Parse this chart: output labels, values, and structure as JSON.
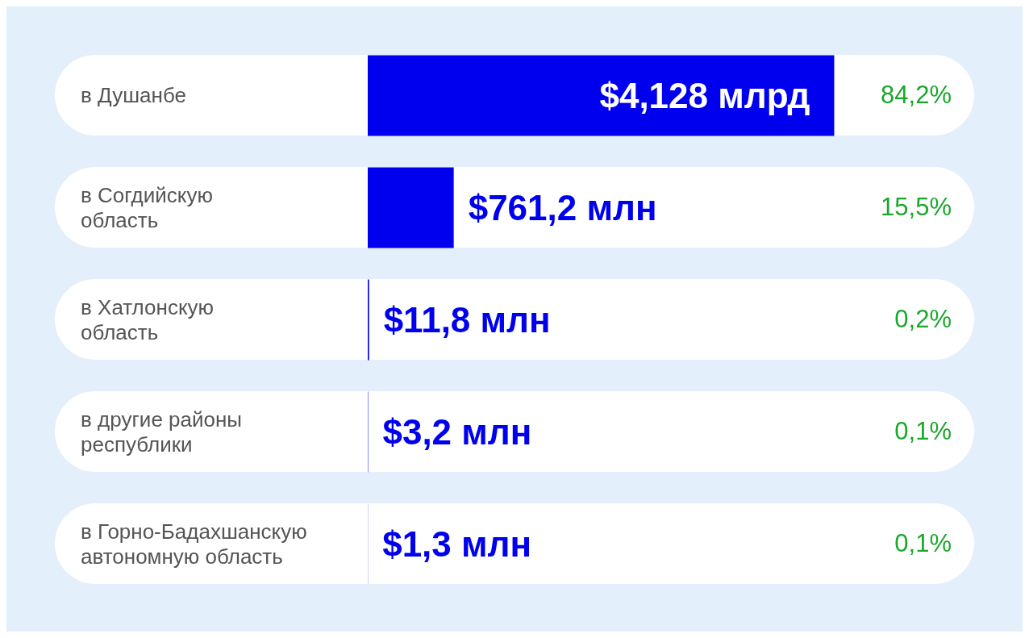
{
  "chart_data": {
    "type": "bar",
    "orientation": "horizontal",
    "categories": [
      "в Душанбе",
      "в Согдийскую область",
      "в Хатлонскую область",
      "в другие районы республики",
      "в Горно-Бадахшанскую автономную область"
    ],
    "values": [
      4128,
      761.2,
      11.8,
      3.2,
      1.3
    ],
    "value_labels": [
      "$4,128 млрд",
      "$761,2 млн",
      "$11,8 млн",
      "$3,2 млн",
      "$1,3 млн"
    ],
    "color": "#0000ee",
    "annotations": [
      "84,2%",
      "15,5%",
      "0,2%",
      "0,1%",
      "0,1%"
    ]
  }
}
